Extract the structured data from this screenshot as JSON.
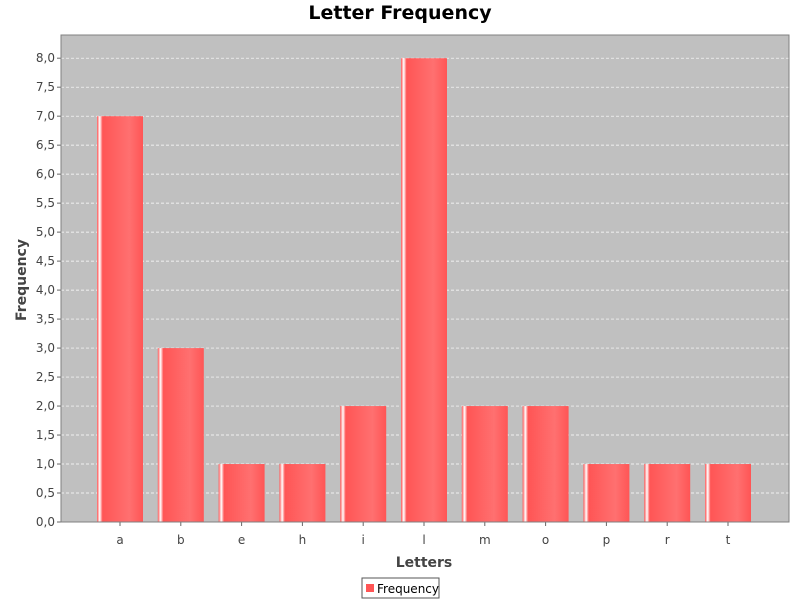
{
  "chart_data": {
    "type": "bar",
    "title": "Letter Frequency",
    "xlabel": "Letters",
    "ylabel": "Frequency",
    "categories": [
      "a",
      "b",
      "e",
      "h",
      "i",
      "l",
      "m",
      "o",
      "p",
      "r",
      "t"
    ],
    "series": [
      {
        "name": "Frequency",
        "values": [
          7,
          3,
          1,
          1,
          2,
          8,
          2,
          2,
          1,
          1,
          1
        ]
      }
    ],
    "ylim": [
      0,
      8.4
    ],
    "yticks": [
      0,
      0.5,
      1,
      1.5,
      2,
      2.5,
      3,
      3.5,
      4,
      4.5,
      5,
      5.5,
      6,
      6.5,
      7,
      7.5,
      8
    ],
    "ytick_labels": [
      "0,0",
      "0,5",
      "1,0",
      "1,5",
      "2,0",
      "2,5",
      "3,0",
      "3,5",
      "4,0",
      "4,5",
      "5,0",
      "5,5",
      "6,0",
      "6,5",
      "7,0",
      "7,5",
      "8,0"
    ],
    "grid": true,
    "legend": "bottom",
    "colors": {
      "bar": "#ff5555",
      "plot_background": "#c0c0c0",
      "gridline": "#ffffff"
    }
  }
}
